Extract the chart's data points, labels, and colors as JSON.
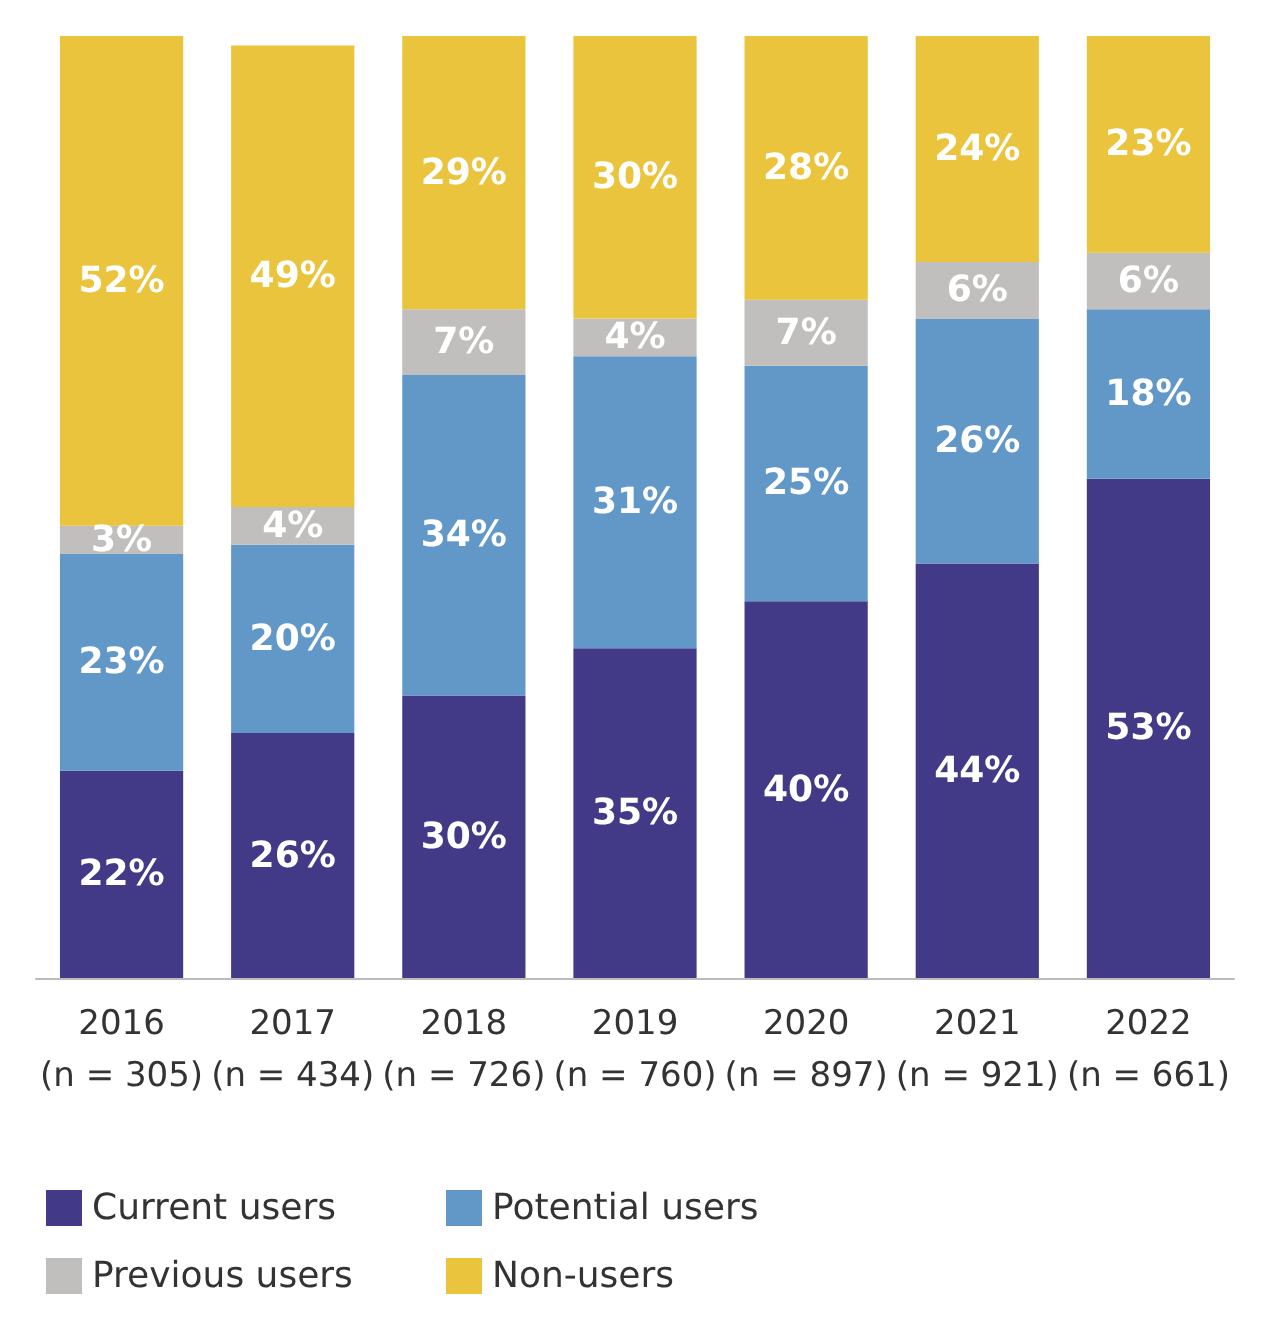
{
  "chart_data": {
    "type": "bar",
    "stacked": true,
    "categories": [
      "2016\n(n = 305)",
      "2017\n(n = 434)",
      "2018\n(n = 726)",
      "2019\n(n = 760)",
      "2020\n(n = 897)",
      "2021\n(n = 921)",
      "2022\n(n = 661)"
    ],
    "series": [
      {
        "name": "Current users",
        "color": "#433a87",
        "values": [
          22,
          26,
          30,
          35,
          40,
          44,
          53
        ],
        "value_labels": [
          "22%",
          "26%",
          "30%",
          "35%",
          "40%",
          "44%",
          "53%"
        ]
      },
      {
        "name": "Potential users",
        "color": "#6198c8",
        "values": [
          23,
          20,
          34,
          31,
          25,
          26,
          18
        ],
        "value_labels": [
          "23%",
          "20%",
          "34%",
          "31%",
          "25%",
          "26%",
          "18%"
        ]
      },
      {
        "name": "Previous users",
        "color": "#c0bfbe",
        "values": [
          3,
          4,
          7,
          4,
          7,
          6,
          6
        ],
        "value_labels": [
          "3%",
          "4%",
          "7%",
          "4%",
          "7%",
          "6%",
          "6%"
        ]
      },
      {
        "name": "Non-users",
        "color": "#e9c43c",
        "values": [
          52,
          49,
          29,
          30,
          28,
          24,
          23
        ],
        "value_labels": [
          "52%",
          "49%",
          "29%",
          "30%",
          "28%",
          "24%",
          "23%"
        ]
      }
    ],
    "ylim": [
      0,
      100
    ],
    "tick_labels": "x",
    "legend": "bottom left"
  }
}
